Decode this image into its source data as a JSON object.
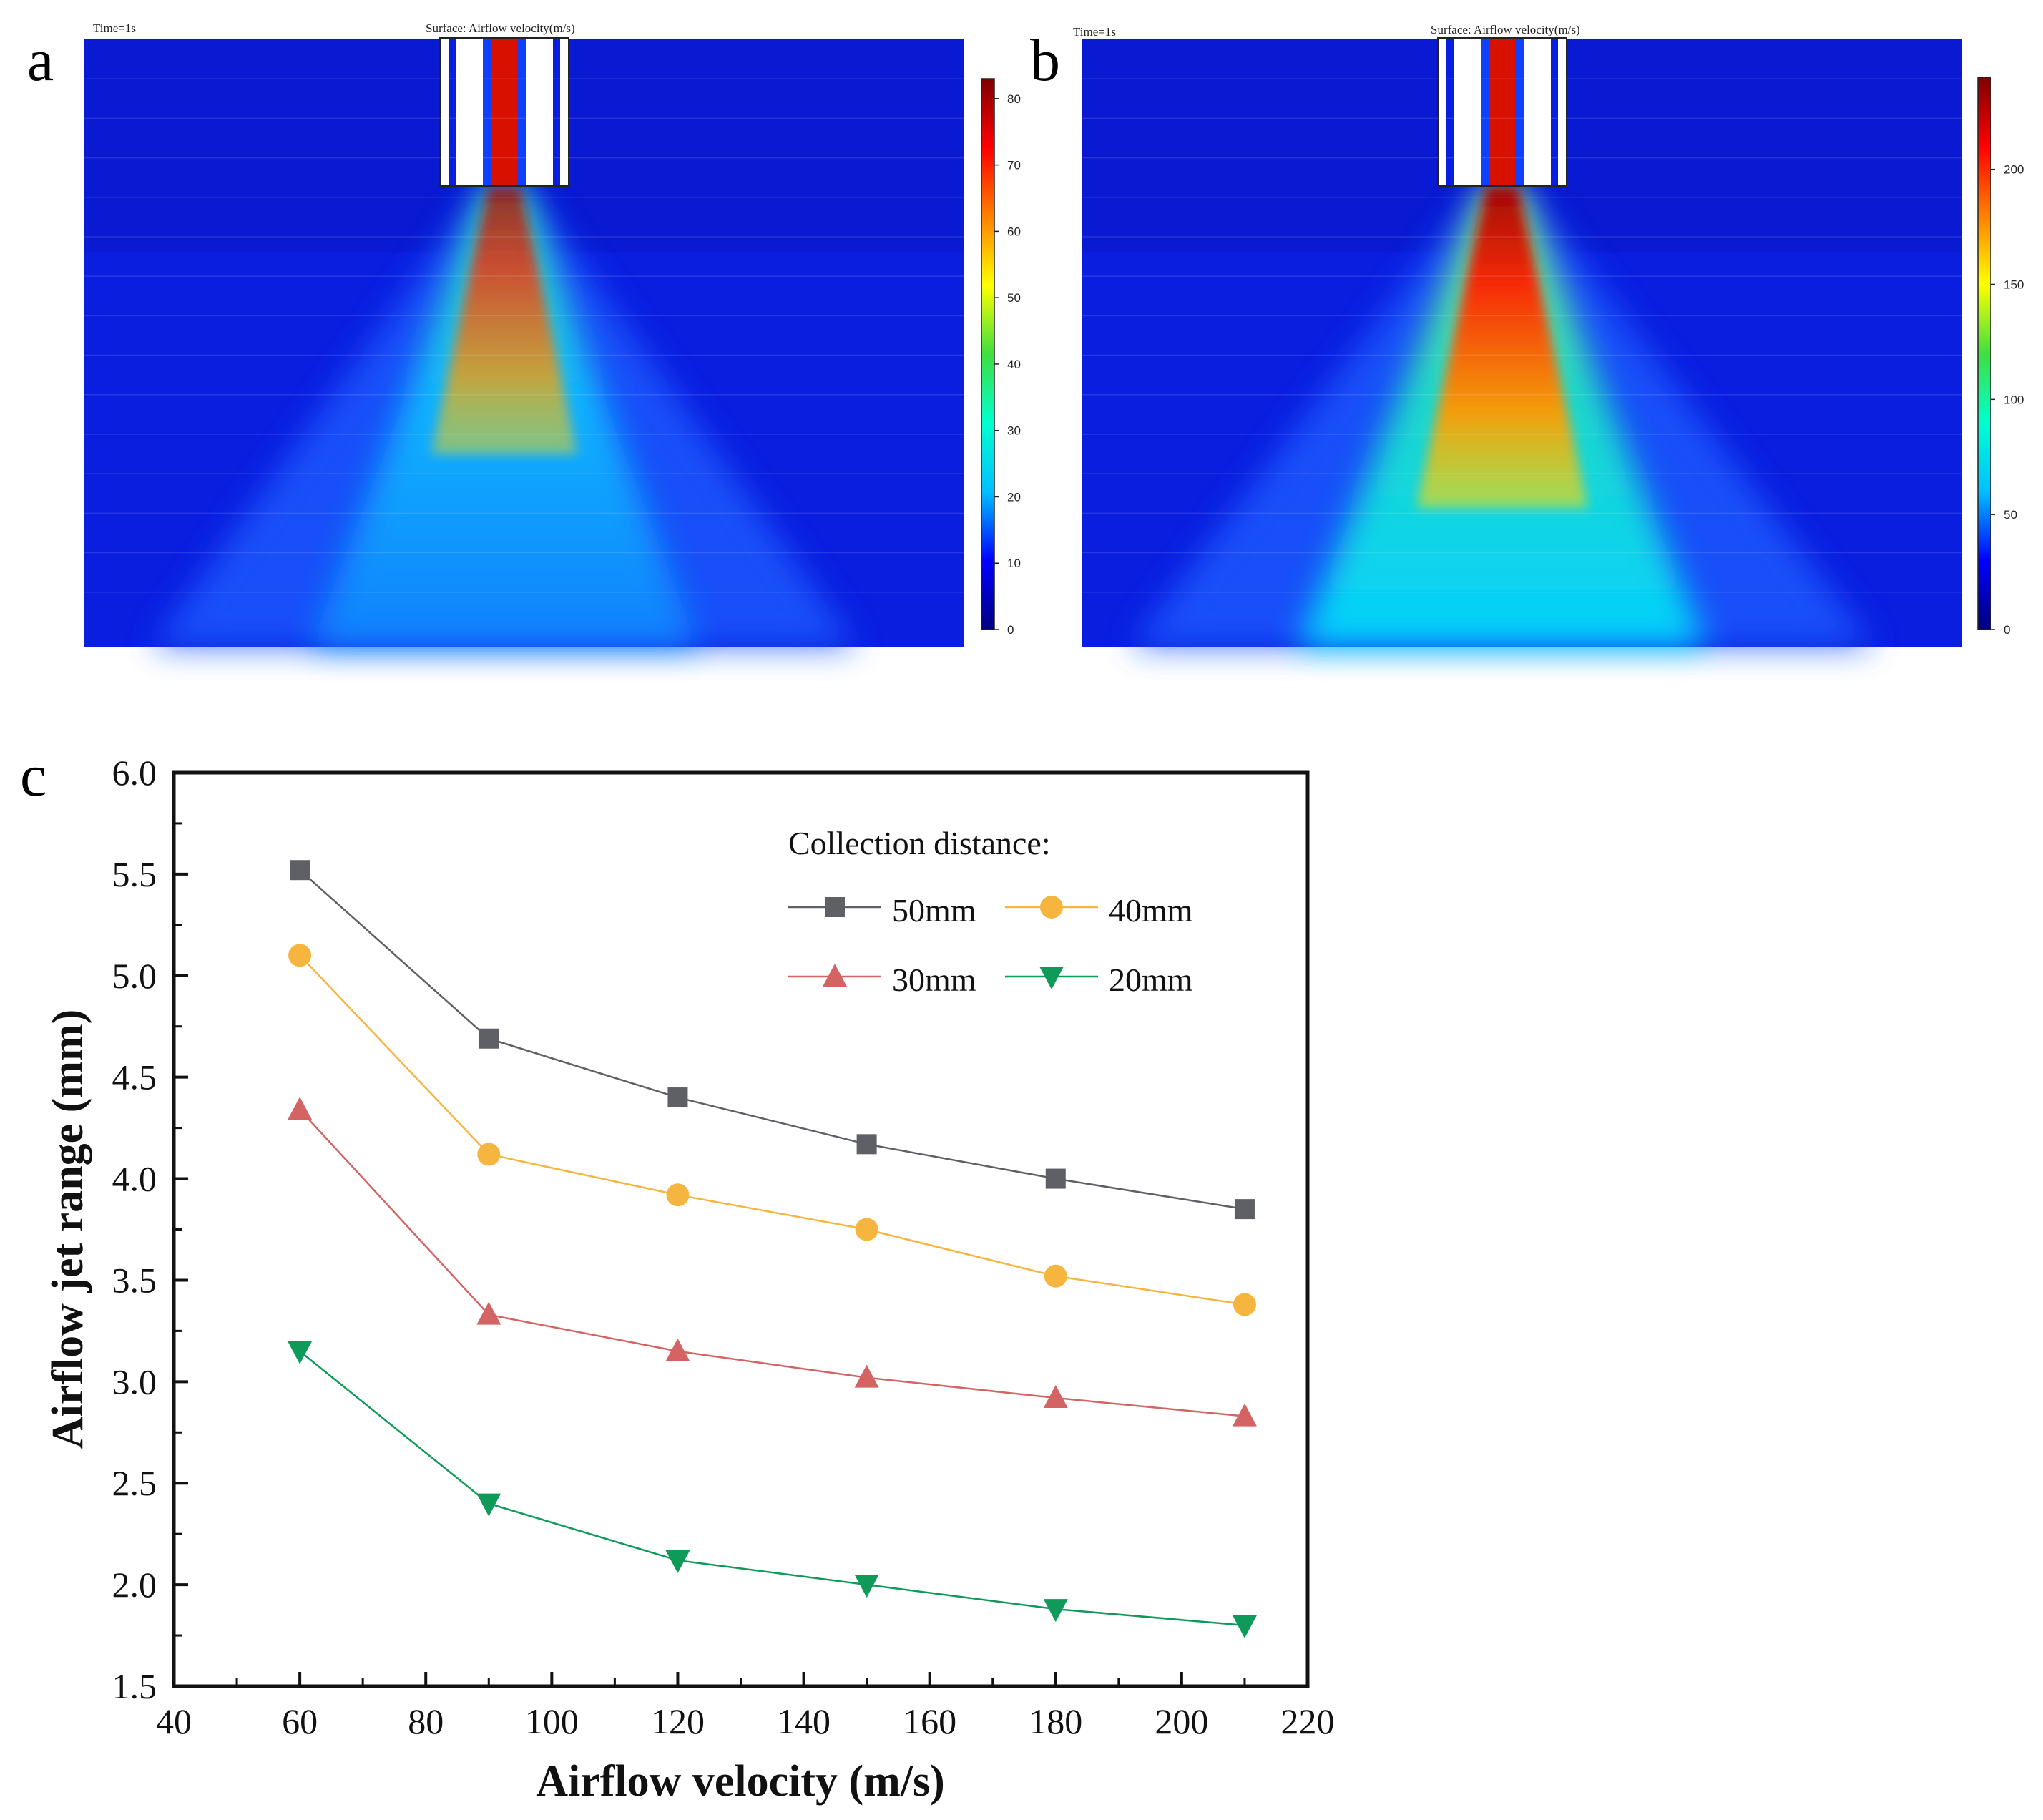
{
  "panels": [
    {
      "letter": "a",
      "time_label": "Time=1s",
      "surface_label": "Surface: Airflow velocity(m/s)",
      "colorbar_ticks": [
        "0",
        "10",
        "20",
        "30",
        "40",
        "50",
        "60",
        "70",
        "80"
      ],
      "colorbar_max": 83,
      "jet_strength": 0.7
    },
    {
      "letter": "b",
      "time_label": "Time=1s",
      "surface_label": "Surface: Airflow velocity(m/s)",
      "colorbar_ticks": [
        "0",
        "50",
        "100",
        "150",
        "200"
      ],
      "colorbar_max": 240,
      "jet_strength": 1.0
    }
  ],
  "colormap": [
    "#00007f",
    "#0000ff",
    "#00bfff",
    "#00ffd0",
    "#3fdf3f",
    "#ffff00",
    "#ff8000",
    "#ff0000",
    "#7f0000"
  ],
  "chart_letter": "c",
  "chart_data": {
    "type": "line",
    "xlabel": "Airflow velocity (m/s)",
    "ylabel": "Airflow jet range (mm)",
    "xlim": [
      40,
      220
    ],
    "ylim": [
      1.5,
      6.0
    ],
    "xticks": [
      40,
      60,
      80,
      100,
      120,
      140,
      160,
      180,
      200,
      220
    ],
    "yticks": [
      1.5,
      2.0,
      2.5,
      3.0,
      3.5,
      4.0,
      4.5,
      5.0,
      5.5,
      6.0
    ],
    "x": [
      60,
      90,
      120,
      150,
      180,
      210
    ],
    "legend_title": "Collection distance:",
    "series": [
      {
        "name": "50mm",
        "values": [
          5.52,
          4.69,
          4.4,
          4.17,
          4.0,
          3.85
        ],
        "marker": "square",
        "color": "#5f6066"
      },
      {
        "name": "40mm",
        "values": [
          5.1,
          4.12,
          3.92,
          3.75,
          3.52,
          3.38
        ],
        "marker": "circle",
        "color": "#f6b53f"
      },
      {
        "name": "30mm",
        "values": [
          4.34,
          3.33,
          3.15,
          3.02,
          2.92,
          2.83
        ],
        "marker": "triangle-up",
        "color": "#d46464"
      },
      {
        "name": "20mm",
        "values": [
          3.15,
          2.4,
          2.12,
          2.0,
          1.88,
          1.8
        ],
        "marker": "triangle-down",
        "color": "#0e9a58"
      }
    ]
  }
}
